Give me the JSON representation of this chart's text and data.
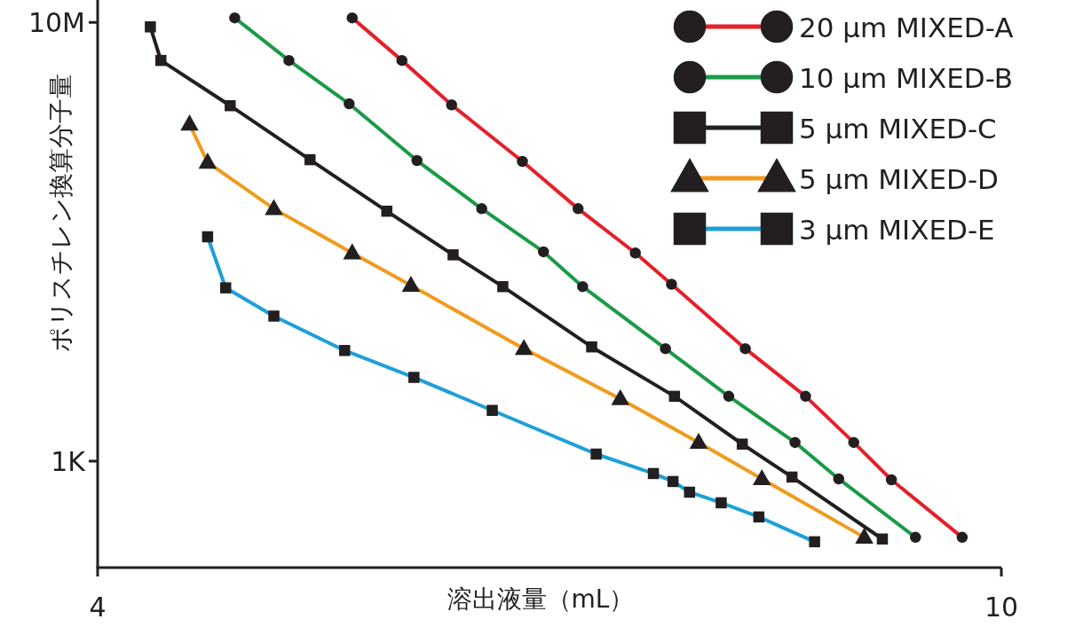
{
  "chart_data": {
    "type": "line",
    "xlabel": "溶出液量（mL）",
    "ylabel": "ポリスチレン換算分子量",
    "log": "y",
    "xlim": [
      4,
      10
    ],
    "ylim": [
      107,
      16000000
    ],
    "xticks": [
      4,
      10
    ],
    "yticks": [
      {
        "value": 1000,
        "label": "1K"
      },
      {
        "value": 10000000,
        "label": "10M"
      }
    ],
    "grid": false,
    "legend": "top right",
    "line_style": "solid",
    "series": [
      {
        "name": "20 μm MIXED-A",
        "color": "#e5202a",
        "marker": "circle",
        "x": [
          5.69,
          6.02,
          6.35,
          6.82,
          7.19,
          7.57,
          7.81,
          8.3,
          8.7,
          9.02,
          9.27,
          9.74
        ],
        "values": [
          11000000,
          4500000,
          1770000,
          540000,
          200000,
          79000,
          41000,
          10600,
          3900,
          1480,
          676,
          202
        ]
      },
      {
        "name": "10 μm MIXED-B",
        "color": "#1a9a48",
        "marker": "circle",
        "x": [
          4.91,
          5.27,
          5.67,
          6.12,
          6.55,
          6.96,
          7.22,
          7.77,
          8.19,
          8.63,
          8.92,
          9.43
        ],
        "values": [
          11000000,
          4500000,
          1810000,
          550000,
          200000,
          81000,
          39000,
          10600,
          3900,
          1480,
          689,
          202
        ]
      },
      {
        "name": "5 μm MIXED-C",
        "color": "#231f20",
        "marker": "square",
        "x": [
          4.35,
          4.42,
          4.88,
          5.41,
          5.92,
          6.36,
          6.69,
          7.28,
          7.83,
          8.28,
          8.61,
          9.21
        ],
        "values": [
          9100000,
          4500000,
          1740000,
          560000,
          190000,
          76000,
          39000,
          11000,
          3900,
          1430,
          716,
          195
        ]
      },
      {
        "name": "5 μm MIXED-D",
        "color": "#f09b1d",
        "marker": "triangle",
        "x": [
          4.61,
          4.73,
          5.17,
          5.69,
          6.08,
          6.83,
          7.47,
          7.99,
          8.41,
          9.09
        ],
        "values": [
          1180000,
          530000,
          200000,
          79000,
          40000,
          10600,
          3700,
          1480,
          689,
          202
        ]
      },
      {
        "name": "3 μm MIXED-E",
        "color": "#1e9fd8",
        "marker": "square",
        "x": [
          4.73,
          4.85,
          5.17,
          5.64,
          6.1,
          6.62,
          7.31,
          7.69,
          7.82,
          7.93,
          8.14,
          8.39,
          8.76
        ],
        "values": [
          111000,
          38000,
          21000,
          10200,
          5800,
          2900,
          1160,
          771,
          652,
          521,
          417,
          310,
          184
        ]
      }
    ]
  }
}
